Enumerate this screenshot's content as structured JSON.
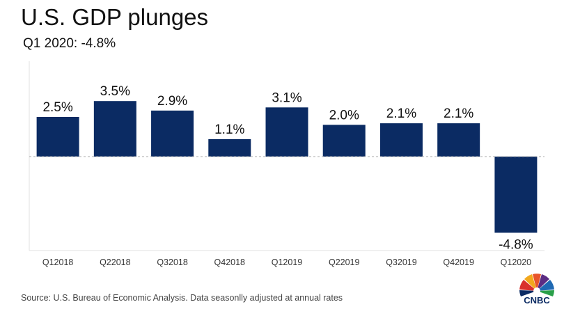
{
  "header": {
    "title": "U.S. GDP plunges",
    "subtitle": "Q1 2020: -4.8%"
  },
  "footer": {
    "source": "Source: U.S. Bureau of Economic Analysis. Data seasonlly adjusted at annual rates",
    "logo_text": "CNBC"
  },
  "colors": {
    "bar": "#0b2b63",
    "grid": "#e2e2e2",
    "zero_line": "#aaaaaa",
    "text": "#111111"
  },
  "chart_data": {
    "type": "bar",
    "title": "U.S. GDP plunges",
    "subtitle": "Q1 2020: -4.8%",
    "categories": [
      "Q12018",
      "Q22018",
      "Q32018",
      "Q42018",
      "Q12019",
      "Q22019",
      "Q32019",
      "Q42019",
      "Q12020"
    ],
    "values": [
      2.5,
      3.5,
      2.9,
      1.1,
      3.1,
      2.0,
      2.1,
      2.1,
      -4.8
    ],
    "value_labels": [
      "2.5%",
      "3.5%",
      "2.9%",
      "1.1%",
      "3.1%",
      "2.0%",
      "2.1%",
      "2.1%",
      "-4.8%"
    ],
    "xlabel": "",
    "ylabel": "",
    "ylim": [
      -5.0,
      6.0
    ],
    "grid": false,
    "legend": "none"
  }
}
